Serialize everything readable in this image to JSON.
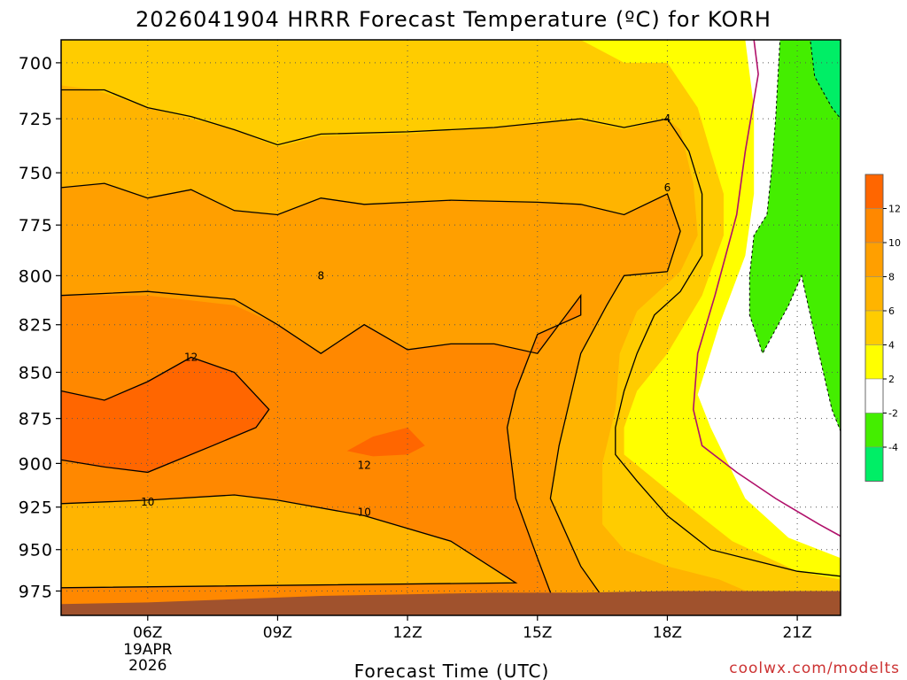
{
  "title": "2026041904 HRRR Forecast Temperature (ºC) for KORH",
  "xlabel": "Forecast Time (UTC)",
  "credit": "coolwx.com/modelts",
  "chart_data": {
    "type": "heatmap",
    "title": "2026041904 HRRR Forecast Temperature (ºC) for KORH",
    "xlabel": "Forecast Time (UTC)",
    "ylabel": "",
    "x_axis": {
      "unit": "hour UTC",
      "range": [
        4,
        22
      ],
      "ticks": [
        {
          "hour": 6,
          "label": "06Z",
          "sub": [
            "19APR",
            "2026"
          ]
        },
        {
          "hour": 9,
          "label": "09Z"
        },
        {
          "hour": 12,
          "label": "12Z"
        },
        {
          "hour": 15,
          "label": "15Z"
        },
        {
          "hour": 18,
          "label": "18Z"
        },
        {
          "hour": 21,
          "label": "21Z"
        }
      ]
    },
    "y_axis": {
      "unit": "hPa",
      "scale": "log",
      "range": [
        990,
        690
      ],
      "ticks": [
        700,
        725,
        750,
        775,
        800,
        825,
        850,
        875,
        900,
        925,
        950,
        975
      ]
    },
    "grid": true,
    "legend_placement": "right",
    "colorbar": {
      "bins": [
        {
          "from": 12,
          "to": 14,
          "color": "#ff6600"
        },
        {
          "from": 10,
          "to": 12,
          "color": "#ff8800"
        },
        {
          "from": 8,
          "to": 10,
          "color": "#ff9f00"
        },
        {
          "from": 6,
          "to": 8,
          "color": "#ffb400"
        },
        {
          "from": 4,
          "to": 6,
          "color": "#ffcc00"
        },
        {
          "from": 2,
          "to": 4,
          "color": "#ffff00"
        },
        {
          "from": -2,
          "to": 2,
          "color": "#ffffff"
        },
        {
          "from": -4,
          "to": -2,
          "color": "#44ee00"
        },
        {
          "from": -6,
          "to": -4,
          "color": "#00ee66"
        }
      ],
      "tick_labels": [
        "12",
        "10",
        "8",
        "6",
        "4",
        "2",
        "-2",
        "-4"
      ]
    },
    "contour_labels": [
      {
        "value": "4",
        "hour": 18.0,
        "p": 725
      },
      {
        "value": "6",
        "hour": 18.0,
        "p": 757
      },
      {
        "value": "8",
        "hour": 10.0,
        "p": 800
      },
      {
        "value": "12",
        "hour": 7.0,
        "p": 842
      },
      {
        "value": "12",
        "hour": 11.0,
        "p": 901
      },
      {
        "value": "10",
        "hour": 6.0,
        "p": 922
      },
      {
        "value": "10",
        "hour": 11.0,
        "p": 928
      }
    ],
    "terrain_color": "#a0522d",
    "zero_line_color": "#b0106a",
    "regions": [
      {
        "color": "#ffff00",
        "points": [
          [
            4,
            690
          ],
          [
            22,
            690
          ],
          [
            22,
            990
          ],
          [
            4,
            990
          ]
        ]
      },
      {
        "color": "#ffffff",
        "points": [
          [
            19.8,
            690
          ],
          [
            22,
            690
          ],
          [
            22,
            955
          ],
          [
            20.8,
            943
          ],
          [
            19.8,
            920
          ],
          [
            19,
            880
          ],
          [
            18.7,
            862
          ],
          [
            19.2,
            825
          ],
          [
            19.8,
            790
          ],
          [
            20,
            760
          ],
          [
            20,
            720
          ]
        ]
      },
      {
        "color": "#44ee00",
        "points": [
          [
            20.6,
            690
          ],
          [
            22,
            690
          ],
          [
            22,
            882
          ],
          [
            21.8,
            870
          ],
          [
            21.5,
            840
          ],
          [
            21.2,
            810
          ],
          [
            21.1,
            800
          ],
          [
            20.8,
            815
          ],
          [
            20.2,
            840
          ],
          [
            19.9,
            820
          ],
          [
            19.9,
            800
          ],
          [
            20,
            780
          ],
          [
            20.3,
            770
          ],
          [
            20.4,
            750
          ],
          [
            20.5,
            725
          ]
        ]
      },
      {
        "color": "#00ee66",
        "points": [
          [
            21.3,
            690
          ],
          [
            22,
            690
          ],
          [
            22,
            725
          ],
          [
            21.8,
            720
          ],
          [
            21.4,
            706
          ]
        ]
      },
      {
        "color": "#ffcc00",
        "points": [
          [
            4,
            690
          ],
          [
            15,
            690
          ],
          [
            16,
            690
          ],
          [
            17,
            700
          ],
          [
            18,
            700
          ],
          [
            18.7,
            720
          ],
          [
            19,
            740
          ],
          [
            19.3,
            760
          ],
          [
            19.3,
            780
          ],
          [
            18.8,
            810
          ],
          [
            18,
            840
          ],
          [
            17.3,
            860
          ],
          [
            17,
            880
          ],
          [
            17,
            895
          ],
          [
            18,
            915
          ],
          [
            19.5,
            945
          ],
          [
            21,
            963
          ],
          [
            22,
            968
          ],
          [
            22,
            990
          ],
          [
            4,
            990
          ]
        ]
      },
      {
        "color": "#ffb400",
        "points": [
          [
            4,
            710
          ],
          [
            4.8,
            712
          ],
          [
            6,
            720
          ],
          [
            7,
            725
          ],
          [
            8,
            730
          ],
          [
            9,
            738
          ],
          [
            10,
            733
          ],
          [
            12,
            732
          ],
          [
            14,
            729
          ],
          [
            15,
            727
          ],
          [
            16,
            726
          ],
          [
            17,
            730
          ],
          [
            18,
            725
          ],
          [
            18.3,
            730
          ],
          [
            18.6,
            755
          ],
          [
            18.7,
            780
          ],
          [
            18.3,
            798
          ],
          [
            17.3,
            818
          ],
          [
            16.9,
            840
          ],
          [
            16.8,
            870
          ],
          [
            16.5,
            900
          ],
          [
            16.5,
            935
          ],
          [
            17,
            950
          ],
          [
            18,
            960
          ],
          [
            19.2,
            968
          ],
          [
            20,
            977
          ],
          [
            22,
            990
          ],
          [
            4,
            990
          ]
        ]
      },
      {
        "color": "#ff9f00",
        "points": [
          [
            4,
            757
          ],
          [
            5,
            755
          ],
          [
            6,
            762
          ],
          [
            7,
            758
          ],
          [
            8,
            768
          ],
          [
            9,
            770
          ],
          [
            10,
            762
          ],
          [
            11,
            765
          ],
          [
            13,
            763
          ],
          [
            15,
            764
          ],
          [
            16,
            765
          ],
          [
            17,
            770
          ],
          [
            18,
            760
          ],
          [
            18.3,
            778
          ],
          [
            18,
            798
          ],
          [
            17,
            800
          ],
          [
            16.6,
            815
          ],
          [
            16,
            840
          ],
          [
            15.5,
            890
          ],
          [
            15.3,
            920
          ],
          [
            16,
            960
          ],
          [
            16.8,
            990
          ],
          [
            4,
            990
          ]
        ]
      },
      {
        "color": "#ff8800",
        "points": [
          [
            4,
            810
          ],
          [
            6,
            810
          ],
          [
            8,
            815
          ],
          [
            9,
            825
          ],
          [
            10,
            840
          ],
          [
            11,
            825
          ],
          [
            12,
            838
          ],
          [
            13,
            835
          ],
          [
            14,
            835
          ],
          [
            15,
            840
          ],
          [
            16,
            810
          ],
          [
            16,
            820
          ],
          [
            15,
            830
          ],
          [
            14.5,
            860
          ],
          [
            14.3,
            880
          ],
          [
            14.5,
            920
          ],
          [
            15,
            955
          ],
          [
            15.5,
            990
          ],
          [
            4,
            990
          ]
        ]
      },
      {
        "color": "#ffb400",
        "points": [
          [
            4,
            923
          ],
          [
            6,
            921
          ],
          [
            8,
            918
          ],
          [
            9,
            921
          ],
          [
            11,
            930
          ],
          [
            13,
            945
          ],
          [
            14.5,
            970
          ],
          [
            4,
            973
          ]
        ]
      },
      {
        "color": "#ff6600",
        "points": [
          [
            4,
            860
          ],
          [
            5,
            865
          ],
          [
            6,
            855
          ],
          [
            7,
            842
          ],
          [
            8,
            850
          ],
          [
            8.8,
            870
          ],
          [
            8.5,
            880
          ],
          [
            7.5,
            890
          ],
          [
            6.5,
            900
          ],
          [
            6,
            905
          ],
          [
            5,
            902
          ],
          [
            4,
            898
          ]
        ]
      },
      {
        "color": "#ff6600",
        "points": [
          [
            10.6,
            893
          ],
          [
            11.2,
            885
          ],
          [
            12,
            880
          ],
          [
            12.4,
            890
          ],
          [
            12,
            895
          ],
          [
            11.2,
            896
          ]
        ]
      }
    ],
    "contours": [
      {
        "value": "4",
        "points": [
          [
            4,
            712
          ],
          [
            5,
            712
          ],
          [
            6,
            720
          ],
          [
            7,
            724
          ],
          [
            8,
            730
          ],
          [
            9,
            737
          ],
          [
            10,
            732
          ],
          [
            12,
            731
          ],
          [
            14,
            729
          ],
          [
            15,
            727
          ],
          [
            16,
            725
          ],
          [
            17,
            729
          ],
          [
            18,
            725
          ],
          [
            18.5,
            740
          ],
          [
            18.8,
            760
          ],
          [
            18.8,
            790
          ],
          [
            18.3,
            808
          ],
          [
            17.7,
            820
          ],
          [
            17.3,
            840
          ],
          [
            17,
            860
          ],
          [
            16.8,
            880
          ],
          [
            16.8,
            895
          ],
          [
            17.3,
            910
          ],
          [
            18,
            930
          ],
          [
            19,
            950
          ],
          [
            21,
            963
          ],
          [
            22,
            966
          ]
        ]
      },
      {
        "color": "#000000",
        "points": [
          [
            4,
            757
          ],
          [
            5,
            755
          ],
          [
            6,
            762
          ],
          [
            7,
            758
          ],
          [
            8,
            768
          ],
          [
            9,
            770
          ],
          [
            10,
            762
          ],
          [
            11,
            765
          ],
          [
            13,
            763
          ],
          [
            15,
            764
          ],
          [
            16,
            765
          ],
          [
            17,
            770
          ],
          [
            18,
            760
          ],
          [
            18.3,
            778
          ],
          [
            18,
            798
          ],
          [
            17,
            800
          ],
          [
            16.6,
            815
          ],
          [
            16,
            840
          ],
          [
            15.5,
            890
          ],
          [
            15.3,
            920
          ],
          [
            16,
            960
          ],
          [
            16.8,
            990
          ]
        ]
      },
      {
        "value": "8",
        "points": [
          [
            4,
            810
          ],
          [
            6,
            808
          ],
          [
            8,
            812
          ],
          [
            9,
            825
          ],
          [
            10,
            840
          ],
          [
            11,
            825
          ],
          [
            12,
            838
          ],
          [
            13,
            835
          ],
          [
            14,
            835
          ],
          [
            15,
            840
          ],
          [
            16,
            810
          ],
          [
            16,
            820
          ],
          [
            15,
            830
          ],
          [
            14.5,
            860
          ],
          [
            14.3,
            880
          ],
          [
            14.5,
            920
          ],
          [
            15,
            955
          ],
          [
            15.5,
            990
          ]
        ]
      },
      {
        "value": "10",
        "points": [
          [
            4,
            923
          ],
          [
            6,
            921
          ],
          [
            8,
            918
          ],
          [
            9,
            921
          ],
          [
            11,
            930
          ],
          [
            13,
            945
          ],
          [
            14.5,
            970
          ],
          [
            4,
            973
          ]
        ]
      },
      {
        "value": "12",
        "points": [
          [
            4,
            860
          ],
          [
            5,
            865
          ],
          [
            6,
            855
          ],
          [
            7,
            842
          ],
          [
            8,
            850
          ],
          [
            8.8,
            870
          ],
          [
            8.5,
            880
          ],
          [
            7.5,
            890
          ],
          [
            6.5,
            900
          ],
          [
            6,
            905
          ],
          [
            5,
            902
          ],
          [
            4,
            898
          ]
        ]
      }
    ]
  }
}
